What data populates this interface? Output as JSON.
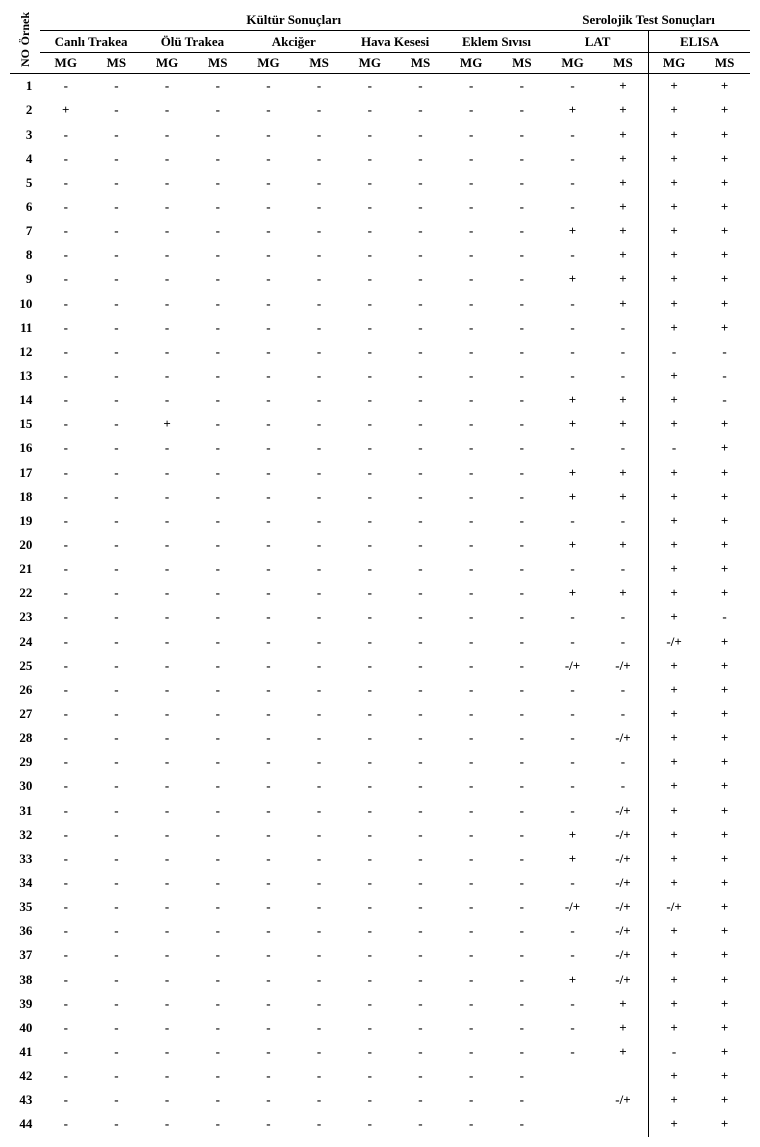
{
  "table": {
    "type": "table",
    "background_color": "#ffffff",
    "text_color": "#000000",
    "font_family": "Times New Roman",
    "header_fontsize": 13,
    "body_fontsize": 13,
    "rotated_labels": [
      "Örnek",
      "NO"
    ],
    "group1": {
      "title": "Kültür Sonuçları",
      "subgroups": [
        {
          "title": "Canlı Trakea",
          "cols": [
            "MG",
            "MS"
          ]
        },
        {
          "title": "Ölü Trakea",
          "cols": [
            "MG",
            "MS"
          ]
        },
        {
          "title": "Akciğer",
          "cols": [
            "MG",
            "MS"
          ]
        },
        {
          "title": "Hava Kesesi",
          "cols": [
            "MG",
            "MS"
          ]
        },
        {
          "title": "Eklem Sıvısı",
          "cols": [
            "MG",
            "MS"
          ]
        }
      ]
    },
    "group2": {
      "title": "Serolojik Test Sonuçları",
      "subgroups": [
        {
          "title": "LAT",
          "cols": [
            "MG",
            "MS"
          ]
        },
        {
          "title": "ELISA",
          "cols": [
            "MG",
            "MS"
          ]
        }
      ]
    },
    "rows": [
      {
        "no": "1",
        "v": [
          "-",
          "-",
          "-",
          "-",
          "-",
          "-",
          "-",
          "-",
          "-",
          "-",
          "-",
          "+",
          "+",
          "+"
        ]
      },
      {
        "no": "2",
        "v": [
          "+",
          "-",
          "-",
          "-",
          "-",
          "-",
          "-",
          "-",
          "-",
          "-",
          "+",
          "+",
          "+",
          "+"
        ]
      },
      {
        "no": "3",
        "v": [
          "-",
          "-",
          "-",
          "-",
          "-",
          "-",
          "-",
          "-",
          "-",
          "-",
          "-",
          "+",
          "+",
          "+"
        ]
      },
      {
        "no": "4",
        "v": [
          "-",
          "-",
          "-",
          "-",
          "-",
          "-",
          "-",
          "-",
          "-",
          "-",
          "-",
          "+",
          "+",
          "+"
        ]
      },
      {
        "no": "5",
        "v": [
          "-",
          "-",
          "-",
          "-",
          "-",
          "-",
          "-",
          "-",
          "-",
          "-",
          "-",
          "+",
          "+",
          "+"
        ]
      },
      {
        "no": "6",
        "v": [
          "-",
          "-",
          "-",
          "-",
          "-",
          "-",
          "-",
          "-",
          "-",
          "-",
          "-",
          "+",
          "+",
          "+"
        ]
      },
      {
        "no": "7",
        "v": [
          "-",
          "-",
          "-",
          "-",
          "-",
          "-",
          "-",
          "-",
          "-",
          "-",
          "+",
          "+",
          "+",
          "+"
        ]
      },
      {
        "no": "8",
        "v": [
          "-",
          "-",
          "-",
          "-",
          "-",
          "-",
          "-",
          "-",
          "-",
          "-",
          "-",
          "+",
          "+",
          "+"
        ]
      },
      {
        "no": "9",
        "v": [
          "-",
          "-",
          "-",
          "-",
          "-",
          "-",
          "-",
          "-",
          "-",
          "-",
          "+",
          "+",
          "+",
          "+"
        ]
      },
      {
        "no": "10",
        "v": [
          "-",
          "-",
          "-",
          "-",
          "-",
          "-",
          "-",
          "-",
          "-",
          "-",
          "-",
          "+",
          "+",
          "+"
        ]
      },
      {
        "no": "11",
        "v": [
          "-",
          "-",
          "-",
          "-",
          "-",
          "-",
          "-",
          "-",
          "-",
          "-",
          "-",
          "-",
          "+",
          "+"
        ]
      },
      {
        "no": "12",
        "v": [
          "-",
          "-",
          "-",
          "-",
          "-",
          "-",
          "-",
          "-",
          "-",
          "-",
          "-",
          "-",
          "-",
          "-"
        ]
      },
      {
        "no": "13",
        "v": [
          "-",
          "-",
          "-",
          "-",
          "-",
          "-",
          "-",
          "-",
          "-",
          "-",
          "-",
          "-",
          "+",
          "-"
        ]
      },
      {
        "no": "14",
        "v": [
          "-",
          "-",
          "-",
          "-",
          "-",
          "-",
          "-",
          "-",
          "-",
          "-",
          "+",
          "+",
          "+",
          "-"
        ]
      },
      {
        "no": "15",
        "v": [
          "-",
          "-",
          "+",
          "-",
          "-",
          "-",
          "-",
          "-",
          "-",
          "-",
          "+",
          "+",
          "+",
          "+"
        ]
      },
      {
        "no": "16",
        "v": [
          "-",
          "-",
          "-",
          "-",
          "-",
          "-",
          "-",
          "-",
          "-",
          "-",
          "-",
          "-",
          "-",
          "+"
        ]
      },
      {
        "no": "17",
        "v": [
          "-",
          "-",
          "-",
          "-",
          "-",
          "-",
          "-",
          "-",
          "-",
          "-",
          "+",
          "+",
          "+",
          "+"
        ]
      },
      {
        "no": "18",
        "v": [
          "-",
          "-",
          "-",
          "-",
          "-",
          "-",
          "-",
          "-",
          "-",
          "-",
          "+",
          "+",
          "+",
          "+"
        ]
      },
      {
        "no": "19",
        "v": [
          "-",
          "-",
          "-",
          "-",
          "-",
          "-",
          "-",
          "-",
          "-",
          "-",
          "-",
          "-",
          "+",
          "+"
        ]
      },
      {
        "no": "20",
        "v": [
          "-",
          "-",
          "-",
          "-",
          "-",
          "-",
          "-",
          "-",
          "-",
          "-",
          "+",
          "+",
          "+",
          "+"
        ]
      },
      {
        "no": "21",
        "v": [
          "-",
          "-",
          "-",
          "-",
          "-",
          "-",
          "-",
          "-",
          "-",
          "-",
          "-",
          "-",
          "+",
          "+"
        ]
      },
      {
        "no": "22",
        "v": [
          "-",
          "-",
          "-",
          "-",
          "-",
          "-",
          "-",
          "-",
          "-",
          "-",
          "+",
          "+",
          "+",
          "+"
        ]
      },
      {
        "no": "23",
        "v": [
          "-",
          "-",
          "-",
          "-",
          "-",
          "-",
          "-",
          "-",
          "-",
          "-",
          "-",
          "-",
          "+",
          "-"
        ]
      },
      {
        "no": "24",
        "v": [
          "-",
          "-",
          "-",
          "-",
          "-",
          "-",
          "-",
          "-",
          "-",
          "-",
          "-",
          "-",
          "-/+",
          "+"
        ]
      },
      {
        "no": "25",
        "v": [
          "-",
          "-",
          "-",
          "-",
          "-",
          "-",
          "-",
          "-",
          "-",
          "-",
          "-/+",
          "-/+",
          "+",
          "+"
        ]
      },
      {
        "no": "26",
        "v": [
          "-",
          "-",
          "-",
          "-",
          "-",
          "-",
          "-",
          "-",
          "-",
          "-",
          "-",
          "-",
          "+",
          "+"
        ]
      },
      {
        "no": "27",
        "v": [
          "-",
          "-",
          "-",
          "-",
          "-",
          "-",
          "-",
          "-",
          "-",
          "-",
          "-",
          "-",
          "+",
          "+"
        ]
      },
      {
        "no": "28",
        "v": [
          "-",
          "-",
          "-",
          "-",
          "-",
          "-",
          "-",
          "-",
          "-",
          "-",
          "-",
          "-/+",
          "+",
          "+"
        ]
      },
      {
        "no": "29",
        "v": [
          "-",
          "-",
          "-",
          "-",
          "-",
          "-",
          "-",
          "-",
          "-",
          "-",
          "-",
          "-",
          "+",
          "+"
        ]
      },
      {
        "no": "30",
        "v": [
          "-",
          "-",
          "-",
          "-",
          "-",
          "-",
          "-",
          "-",
          "-",
          "-",
          "-",
          "-",
          "+",
          "+"
        ]
      },
      {
        "no": "31",
        "v": [
          "-",
          "-",
          "-",
          "-",
          "-",
          "-",
          "-",
          "-",
          "-",
          "-",
          "-",
          "-/+",
          "+",
          "+"
        ]
      },
      {
        "no": "32",
        "v": [
          "-",
          "-",
          "-",
          "-",
          "-",
          "-",
          "-",
          "-",
          "-",
          "-",
          "+",
          "-/+",
          "+",
          "+"
        ]
      },
      {
        "no": "33",
        "v": [
          "-",
          "-",
          "-",
          "-",
          "-",
          "-",
          "-",
          "-",
          "-",
          "-",
          "+",
          "-/+",
          "+",
          "+"
        ]
      },
      {
        "no": "34",
        "v": [
          "-",
          "-",
          "-",
          "-",
          "-",
          "-",
          "-",
          "-",
          "-",
          "-",
          "-",
          "-/+",
          "+",
          "+"
        ]
      },
      {
        "no": "35",
        "v": [
          "-",
          "-",
          "-",
          "-",
          "-",
          "-",
          "-",
          "-",
          "-",
          "-",
          "-/+",
          "-/+",
          "-/+",
          "+"
        ]
      },
      {
        "no": "36",
        "v": [
          "-",
          "-",
          "-",
          "-",
          "-",
          "-",
          "-",
          "-",
          "-",
          "-",
          "-",
          "-/+",
          "+",
          "+"
        ]
      },
      {
        "no": "37",
        "v": [
          "-",
          "-",
          "-",
          "-",
          "-",
          "-",
          "-",
          "-",
          "-",
          "-",
          "-",
          "-/+",
          "+",
          "+"
        ]
      },
      {
        "no": "38",
        "v": [
          "-",
          "-",
          "-",
          "-",
          "-",
          "-",
          "-",
          "-",
          "-",
          "-",
          "+",
          "-/+",
          "+",
          "+"
        ]
      },
      {
        "no": "39",
        "v": [
          "-",
          "-",
          "-",
          "-",
          "-",
          "-",
          "-",
          "-",
          "-",
          "-",
          "-",
          "+",
          "+",
          "+"
        ]
      },
      {
        "no": "40",
        "v": [
          "-",
          "-",
          "-",
          "-",
          "-",
          "-",
          "-",
          "-",
          "-",
          "-",
          "-",
          "+",
          "+",
          "+"
        ]
      },
      {
        "no": "41",
        "v": [
          "-",
          "-",
          "-",
          "-",
          "-",
          "-",
          "-",
          "-",
          "-",
          "-",
          "-",
          "+",
          "-",
          "+"
        ]
      },
      {
        "no": "42",
        "v": [
          "-",
          "-",
          "-",
          "-",
          "-",
          "-",
          "-",
          "-",
          "-",
          "-",
          "",
          "",
          "+",
          "+"
        ]
      },
      {
        "no": "43",
        "v": [
          "-",
          "-",
          "-",
          "-",
          "-",
          "-",
          "-",
          "-",
          "-",
          "-",
          "",
          "-/+",
          "+",
          "+"
        ]
      },
      {
        "no": "44",
        "v": [
          "-",
          "-",
          "-",
          "-",
          "-",
          "-",
          "-",
          "-",
          "-",
          "-",
          "",
          "",
          "+",
          "+"
        ]
      }
    ]
  }
}
